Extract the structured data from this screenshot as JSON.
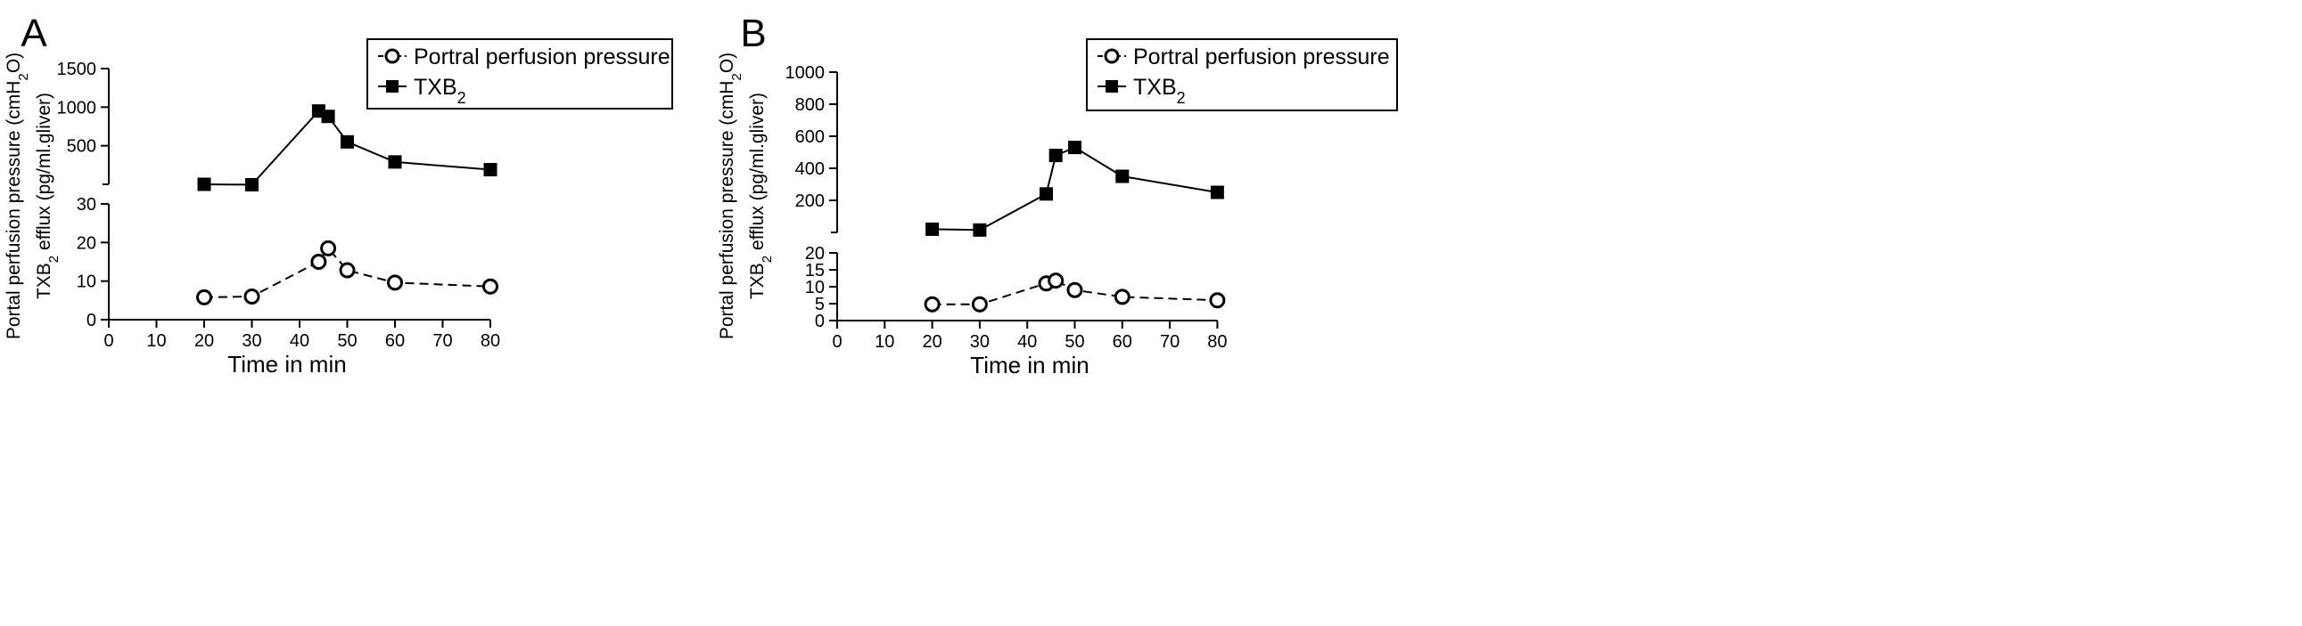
{
  "chart_data": [
    {
      "panel_label": "A",
      "type": "line",
      "xlabel": "Time in min",
      "ylabel_line1": "Portal perfusion pressure (cmH₂O)",
      "ylabel_line2": "TXB₂ efflux (pg/ml.gliver)",
      "x_ticks": [
        0,
        10,
        20,
        30,
        40,
        50,
        60,
        70,
        80
      ],
      "xlim": [
        0,
        80
      ],
      "upper_axis": {
        "ylim": [
          0,
          1500
        ],
        "ticks": [
          500,
          1000,
          1500
        ]
      },
      "lower_axis": {
        "ylim": [
          0,
          30
        ],
        "ticks": [
          0,
          10,
          20,
          30
        ]
      },
      "legend_placement": "top-right",
      "series": [
        {
          "name": "Portral perfusion pressure",
          "axis": "lower",
          "marker": "open-circle",
          "line_style": "dashed",
          "x": [
            20,
            30,
            44,
            46,
            50,
            60,
            80
          ],
          "y": [
            5.8,
            6.0,
            15.0,
            18.5,
            12.8,
            9.6,
            8.6
          ]
        },
        {
          "name": "TXB₂",
          "axis": "upper",
          "marker": "filled-square",
          "line_style": "solid",
          "x": [
            20,
            30,
            44,
            46,
            50,
            60,
            80
          ],
          "y": [
            0,
            -5,
            950,
            880,
            550,
            290,
            190
          ]
        }
      ]
    },
    {
      "panel_label": "B",
      "type": "line",
      "xlabel": "Time in min",
      "ylabel_line1": "Portal perfusion pressure (cmH₂O)",
      "ylabel_line2": "TXB₂ efflux (pg/ml.gliver)",
      "x_ticks": [
        0,
        10,
        20,
        30,
        40,
        50,
        60,
        70,
        80
      ],
      "xlim": [
        0,
        80
      ],
      "upper_axis": {
        "ylim": [
          0,
          1000
        ],
        "ticks": [
          200,
          400,
          600,
          800,
          1000
        ]
      },
      "lower_axis": {
        "ylim": [
          0,
          20
        ],
        "ticks": [
          0,
          5,
          10,
          15,
          20
        ]
      },
      "legend_placement": "top-right",
      "series": [
        {
          "name": "Portral perfusion pressure",
          "axis": "lower",
          "marker": "open-circle",
          "line_style": "dashed",
          "x": [
            20,
            30,
            44,
            46,
            50,
            60,
            80
          ],
          "y": [
            4.8,
            4.8,
            11.0,
            11.8,
            9.0,
            7.0,
            6.0
          ]
        },
        {
          "name": "TXB₂",
          "axis": "upper",
          "marker": "filled-square",
          "line_style": "solid",
          "x": [
            20,
            30,
            44,
            46,
            50,
            60,
            80
          ],
          "y": [
            20,
            15,
            240,
            480,
            530,
            350,
            250
          ]
        }
      ]
    }
  ]
}
